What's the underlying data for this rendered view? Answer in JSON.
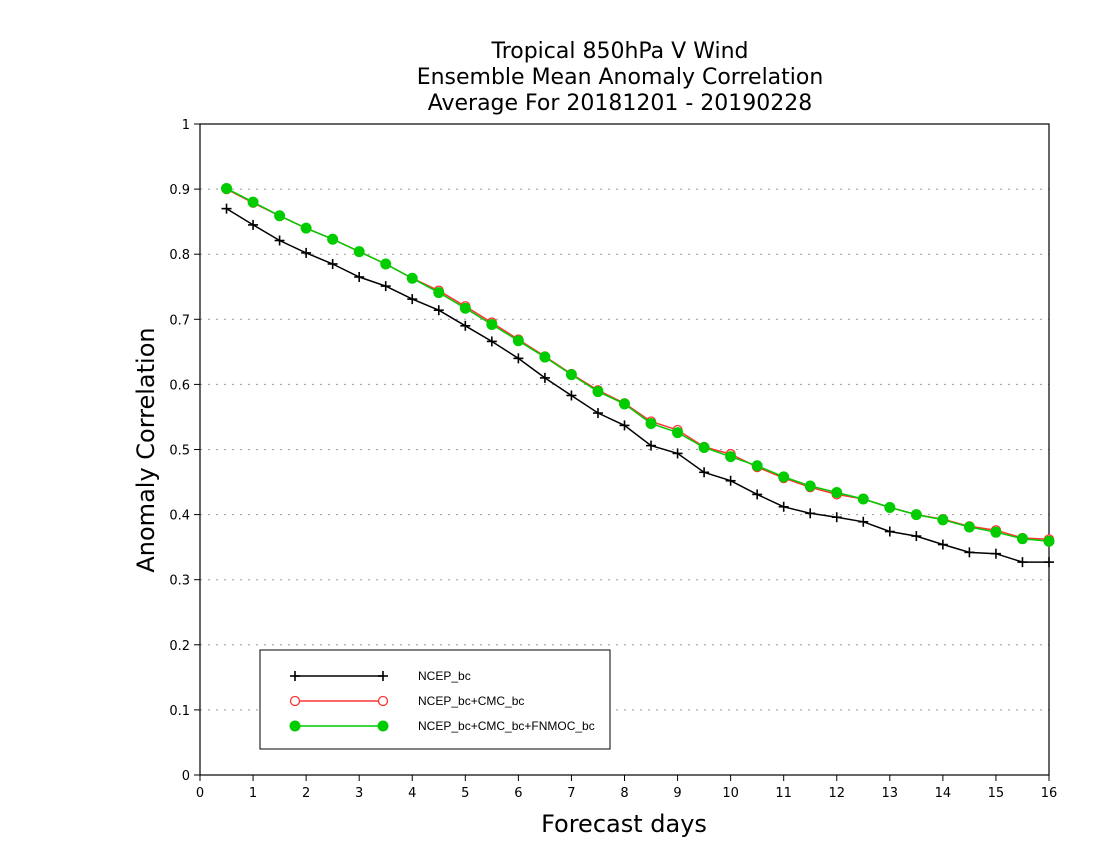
{
  "chart_data": {
    "type": "line",
    "title": [
      "Tropical 850hPa V Wind",
      "Ensemble Mean Anomaly Correlation",
      "Average For 20181201 - 20190228"
    ],
    "xlabel": "Forecast days",
    "ylabel": "Anomaly Correlation",
    "xlim": [
      0,
      16
    ],
    "ylim": [
      0,
      1
    ],
    "xticks": [
      "0",
      "1",
      "2",
      "3",
      "4",
      "5",
      "6",
      "7",
      "8",
      "9",
      "10",
      "11",
      "12",
      "13",
      "14",
      "15",
      "16"
    ],
    "yticks": [
      "0",
      "0.1",
      "0.2",
      "0.3",
      "0.4",
      "0.5",
      "0.6",
      "0.7",
      "0.8",
      "0.9",
      "1"
    ],
    "grid": "horizontal dotted",
    "legend_position": "lower-left",
    "x": [
      0.5,
      1,
      1.5,
      2,
      2.5,
      3,
      3.5,
      4,
      4.5,
      5,
      5.5,
      6,
      6.5,
      7,
      7.5,
      8,
      8.5,
      9,
      9.5,
      10,
      10.5,
      11,
      11.5,
      12,
      12.5,
      13,
      13.5,
      14,
      14.5,
      15,
      15.5,
      16
    ],
    "series": [
      {
        "name": "NCEP_bc",
        "color": "#000000",
        "marker": "plus",
        "values": [
          0.87,
          0.845,
          0.821,
          0.802,
          0.785,
          0.765,
          0.751,
          0.731,
          0.714,
          0.69,
          0.666,
          0.64,
          0.61,
          0.583,
          0.556,
          0.537,
          0.506,
          0.494,
          0.465,
          0.452,
          0.431,
          0.412,
          0.402,
          0.396,
          0.389,
          0.374,
          0.367,
          0.354,
          0.342,
          0.34,
          0.327,
          0.327
        ]
      },
      {
        "name": "NCEP_bc+CMC_bc",
        "color": "#ff3333",
        "marker": "open-circle",
        "values": [
          0.9,
          0.879,
          0.859,
          0.84,
          0.823,
          0.804,
          0.785,
          0.763,
          0.744,
          0.72,
          0.695,
          0.669,
          0.643,
          0.616,
          0.591,
          0.571,
          0.543,
          0.53,
          0.504,
          0.493,
          0.473,
          0.456,
          0.442,
          0.431,
          0.424,
          0.411,
          0.4,
          0.393,
          0.382,
          0.376,
          0.364,
          0.362
        ]
      },
      {
        "name": "NCEP_bc+CMC_bc+FNMOC_bc",
        "color": "#00cc00",
        "marker": "filled-circle",
        "values": [
          0.901,
          0.88,
          0.859,
          0.84,
          0.823,
          0.804,
          0.785,
          0.763,
          0.741,
          0.717,
          0.692,
          0.667,
          0.642,
          0.615,
          0.589,
          0.57,
          0.54,
          0.526,
          0.503,
          0.489,
          0.475,
          0.458,
          0.444,
          0.434,
          0.424,
          0.411,
          0.4,
          0.392,
          0.381,
          0.373,
          0.363,
          0.359
        ]
      }
    ]
  }
}
